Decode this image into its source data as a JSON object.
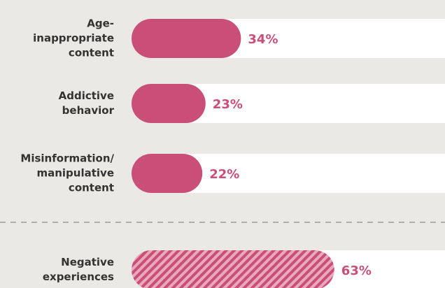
{
  "chart_data": {
    "type": "bar",
    "orientation": "horizontal",
    "categories": [
      "Age-\ninappropriate\ncontent",
      "Addictive\nbehavior",
      "Misinformation/\nmanipulative\ncontent",
      "Negative\nexperiences"
    ],
    "values": [
      34,
      23,
      22,
      63
    ],
    "value_labels": [
      "34%",
      "23%",
      "22%",
      "63%"
    ],
    "patterns": [
      "solid",
      "solid",
      "solid",
      "hatched"
    ],
    "color": "#c94f78",
    "xlim": [
      0,
      100
    ]
  }
}
